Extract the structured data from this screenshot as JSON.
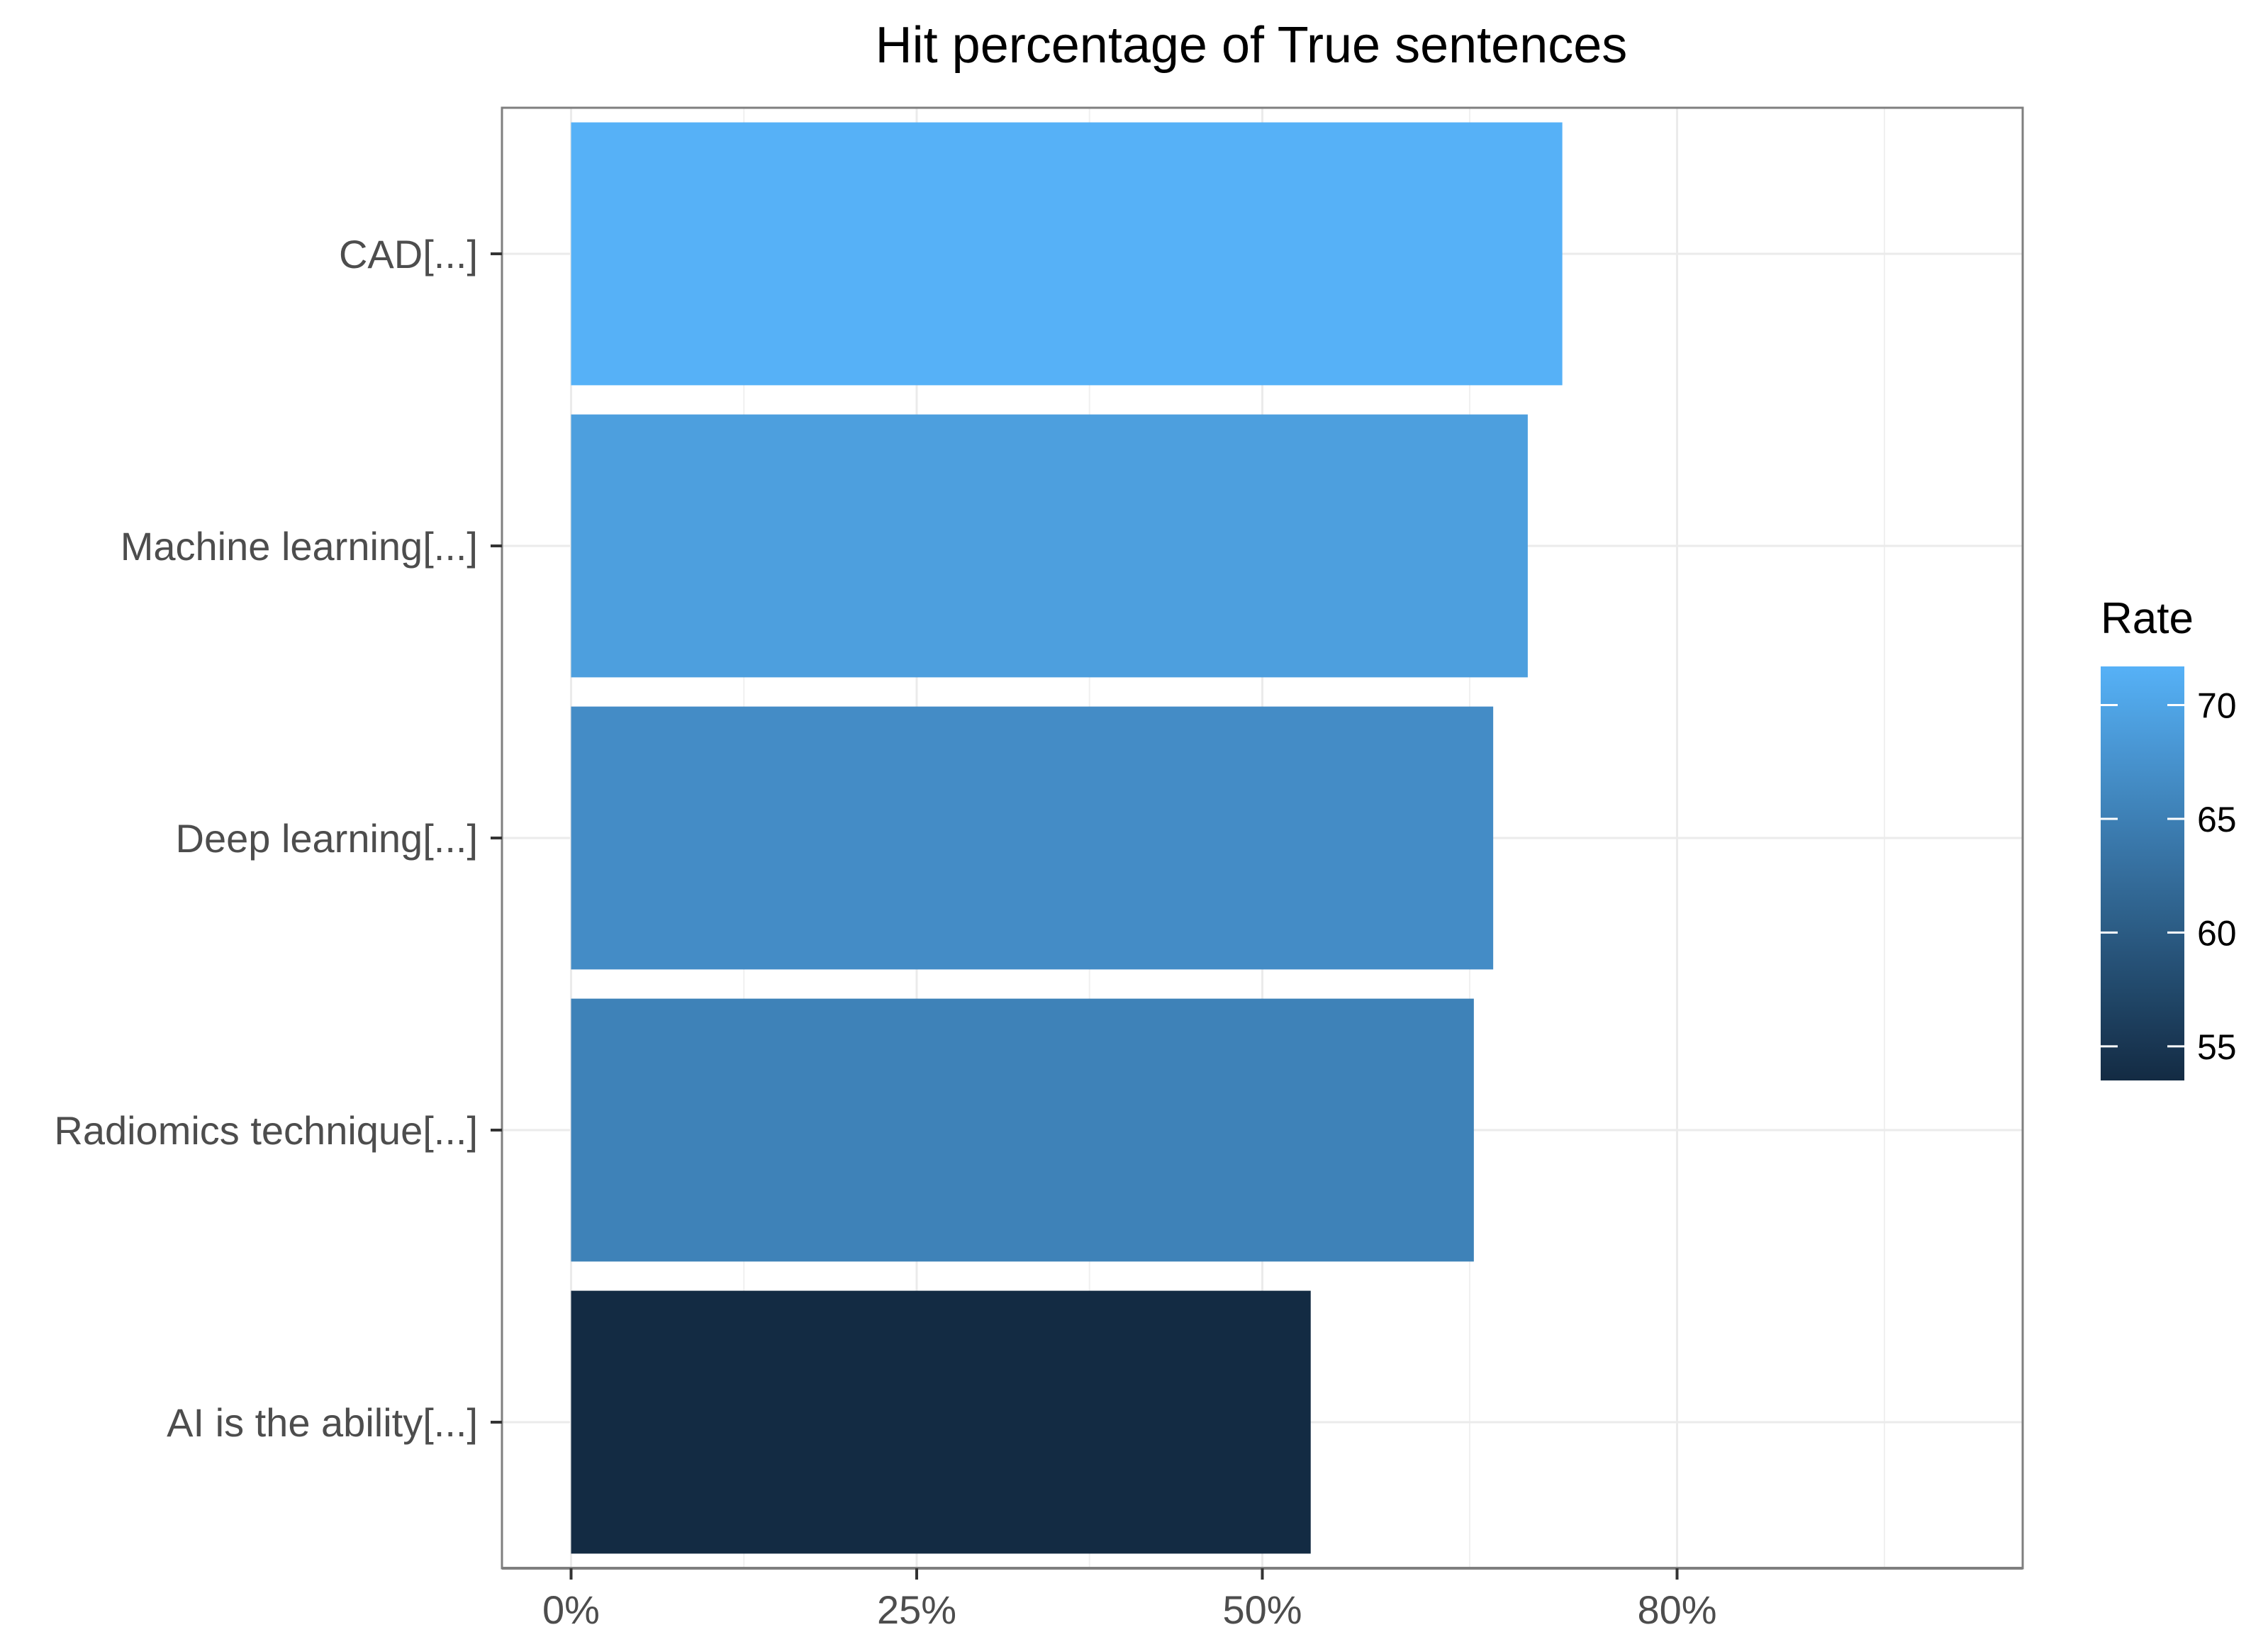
{
  "chart_data": {
    "type": "bar",
    "orientation": "horizontal",
    "title": "Hit percentage of True sentences",
    "xlabel": "",
    "ylabel": "",
    "categories": [
      "CAD[...]",
      "Machine learning[...]",
      "Deep learning[...]",
      "Radiomics technique[...]",
      "AI is the ability[...]"
    ],
    "values": [
      71.7,
      69.2,
      66.7,
      65.3,
      53.5
    ],
    "x_ticks": [
      {
        "value": 0,
        "label": "0%"
      },
      {
        "value": 25,
        "label": "25%"
      },
      {
        "value": 50,
        "label": "50%"
      },
      {
        "value": 80,
        "label": "80%"
      }
    ],
    "xlim": [
      -5,
      105
    ],
    "grid": true,
    "legend": {
      "title": "Rate",
      "placement": "right",
      "range": [
        53.5,
        71.7
      ],
      "ticks": [
        {
          "value": 55,
          "label": "55"
        },
        {
          "value": 60,
          "label": "60"
        },
        {
          "value": 65,
          "label": "65"
        },
        {
          "value": 70,
          "label": "70"
        }
      ],
      "color_low": "#132b43",
      "color_high": "#56b1f7"
    },
    "colors": {
      "low": "#132b43",
      "high": "#56b1f7",
      "axis": "#333333",
      "text": "#4d4d4d",
      "panel_border": "#333333"
    }
  }
}
